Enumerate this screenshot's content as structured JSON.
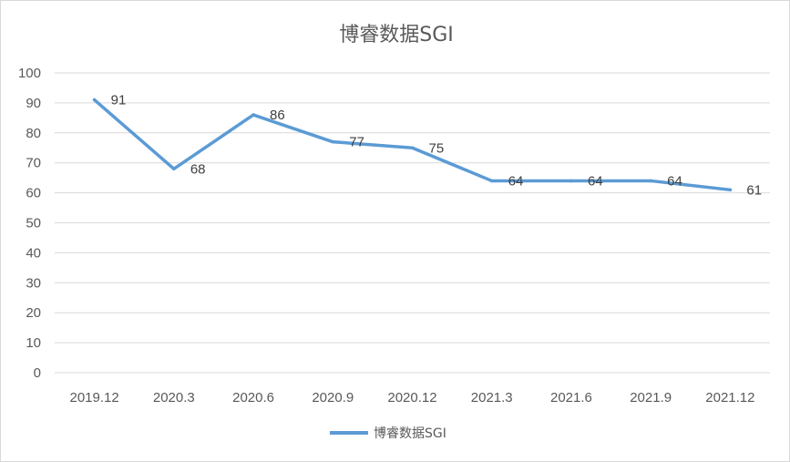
{
  "chart_data": {
    "type": "line",
    "title": "博睿数据SGI",
    "categories": [
      "2019.12",
      "2020.3",
      "2020.6",
      "2020.9",
      "2020.12",
      "2021.3",
      "2021.6",
      "2021.9",
      "2021.12"
    ],
    "series": [
      {
        "name": "博睿数据SGI",
        "values": [
          91,
          68,
          86,
          77,
          75,
          64,
          64,
          64,
          61
        ],
        "color": "#5b9bd5"
      }
    ],
    "y_ticks": [
      "0",
      "10",
      "20",
      "30",
      "40",
      "50",
      "60",
      "70",
      "80",
      "90",
      "100"
    ],
    "ylim": [
      0,
      100
    ],
    "grid": true,
    "legend": "bottom",
    "data_labels": [
      "91",
      "68",
      "86",
      "77",
      "75",
      "64",
      "64",
      "64",
      "61"
    ]
  }
}
